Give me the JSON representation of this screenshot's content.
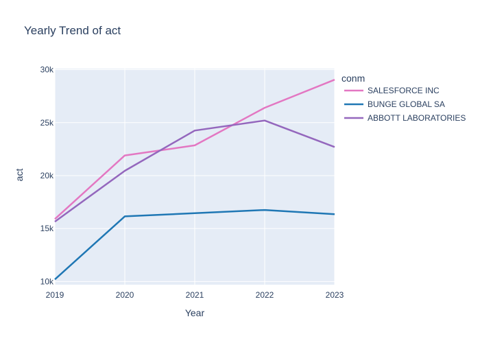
{
  "chart_data": {
    "type": "line",
    "title": "Yearly Trend of act",
    "xlabel": "Year",
    "ylabel": "act",
    "x": [
      2019,
      2020,
      2021,
      2022,
      2023
    ],
    "x_tick_labels": [
      "2019",
      "2020",
      "2021",
      "2022",
      "2023"
    ],
    "y_ticks": [
      10000,
      15000,
      20000,
      25000,
      30000
    ],
    "y_tick_labels": [
      "10k",
      "15k",
      "20k",
      "25k",
      "30k"
    ],
    "xlim": [
      2019,
      2023
    ],
    "ylim": [
      9700,
      30100
    ],
    "grid": true,
    "legend": {
      "title": "conm",
      "placement": "right"
    },
    "series": [
      {
        "name": "SALESFORCE INC",
        "color": "#e377c2",
        "values": [
          15900,
          21900,
          22850,
          26400,
          29050
        ]
      },
      {
        "name": "BUNGE GLOBAL SA",
        "color": "#1f77b4",
        "values": [
          10200,
          16150,
          16450,
          16750,
          16350
        ]
      },
      {
        "name": "ABBOTT LABORATORIES",
        "color": "#9467bd",
        "values": [
          15650,
          20450,
          24250,
          25200,
          22700
        ]
      }
    ],
    "colors": {
      "plot_background": "#e5ecf6",
      "grid": "#ffffff",
      "text": "#2a3f5f"
    }
  }
}
